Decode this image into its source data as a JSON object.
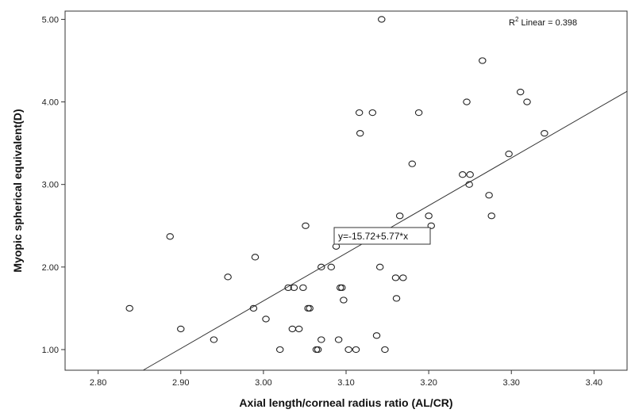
{
  "chart_data": {
    "type": "scatter",
    "xlabel": "Axial length/corneal radius ratio (AL/CR)",
    "ylabel": "Myopic spherical equivalent(D)",
    "xlim": [
      2.76,
      3.44
    ],
    "ylim": [
      0.75,
      5.1
    ],
    "x_ticks": [
      "2.80",
      "2.90",
      "3.00",
      "3.10",
      "3.20",
      "3.30",
      "3.40"
    ],
    "y_ticks": [
      "1.00",
      "2.00",
      "3.00",
      "4.00",
      "5.00"
    ],
    "grid": false,
    "r2_prefix": "R",
    "r2_sup": "2",
    "r2_suffix": " Linear = 0.398",
    "fit": {
      "equation": "y=-15.72+5.77*x",
      "intercept": -15.72,
      "slope": 5.77
    },
    "points": [
      [
        2.838,
        1.5
      ],
      [
        2.887,
        2.37
      ],
      [
        2.9,
        1.25
      ],
      [
        2.94,
        1.12
      ],
      [
        2.957,
        1.88
      ],
      [
        2.988,
        1.5
      ],
      [
        2.99,
        2.12
      ],
      [
        3.003,
        1.37
      ],
      [
        3.02,
        1.0
      ],
      [
        3.03,
        1.75
      ],
      [
        3.035,
        1.25
      ],
      [
        3.037,
        1.75
      ],
      [
        3.043,
        1.25
      ],
      [
        3.048,
        1.75
      ],
      [
        3.051,
        2.5
      ],
      [
        3.054,
        1.5
      ],
      [
        3.056,
        1.5
      ],
      [
        3.064,
        1.0
      ],
      [
        3.066,
        1.0
      ],
      [
        3.07,
        1.12
      ],
      [
        3.07,
        2.0
      ],
      [
        3.082,
        2.0
      ],
      [
        3.088,
        2.25
      ],
      [
        3.091,
        1.12
      ],
      [
        3.093,
        1.75
      ],
      [
        3.095,
        1.75
      ],
      [
        3.097,
        1.6
      ],
      [
        3.103,
        1.0
      ],
      [
        3.112,
        1.0
      ],
      [
        3.116,
        3.87
      ],
      [
        3.117,
        3.62
      ],
      [
        3.132,
        3.87
      ],
      [
        3.137,
        1.17
      ],
      [
        3.141,
        2.0
      ],
      [
        3.143,
        5.0
      ],
      [
        3.147,
        1.0
      ],
      [
        3.16,
        1.87
      ],
      [
        3.161,
        1.62
      ],
      [
        3.165,
        2.62
      ],
      [
        3.169,
        1.87
      ],
      [
        3.18,
        3.25
      ],
      [
        3.188,
        3.87
      ],
      [
        3.2,
        2.62
      ],
      [
        3.203,
        2.5
      ],
      [
        3.241,
        3.12
      ],
      [
        3.246,
        4.0
      ],
      [
        3.249,
        3.0
      ],
      [
        3.25,
        3.12
      ],
      [
        3.265,
        4.5
      ],
      [
        3.273,
        2.87
      ],
      [
        3.276,
        2.62
      ],
      [
        3.297,
        3.37
      ],
      [
        3.311,
        4.12
      ],
      [
        3.319,
        4.0
      ],
      [
        3.34,
        3.62
      ]
    ]
  }
}
